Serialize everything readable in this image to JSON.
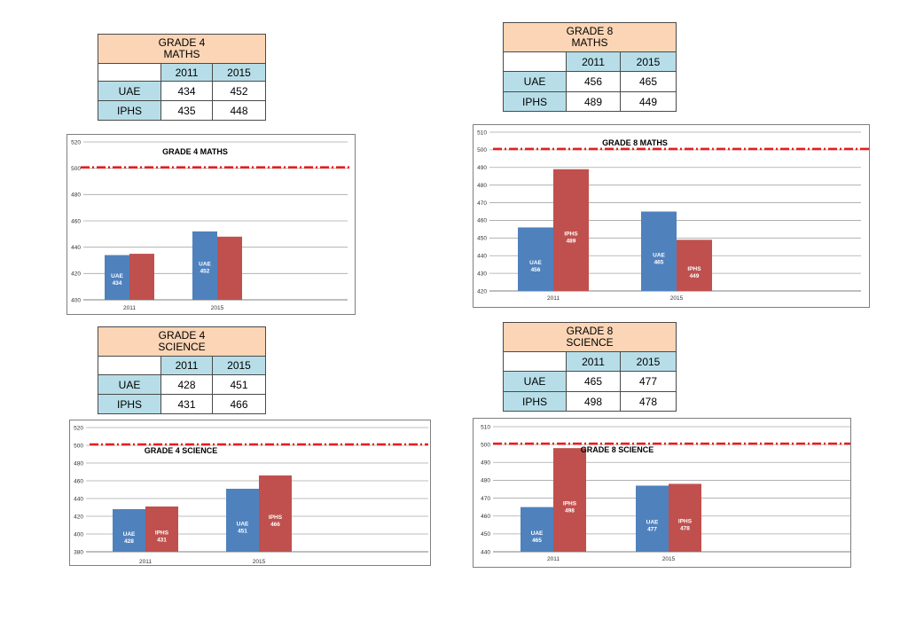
{
  "colors": {
    "uae": "#4f81bd",
    "iphs": "#c0504d",
    "reference": "#e41e1e",
    "gridline": "#a6a6a6"
  },
  "tables": [
    {
      "title_line1": "GRADE 4",
      "title_line2": "MATHS",
      "years": [
        "2011",
        "2015"
      ],
      "rows": [
        {
          "label": "UAE",
          "values": [
            "434",
            "452"
          ]
        },
        {
          "label": "IPHS",
          "values": [
            "435",
            "448"
          ]
        }
      ]
    },
    {
      "title_line1": "GRADE 8",
      "title_line2": "MATHS",
      "years": [
        "2011",
        "2015"
      ],
      "rows": [
        {
          "label": "UAE",
          "values": [
            "456",
            "465"
          ]
        },
        {
          "label": "IPHS",
          "values": [
            "489",
            "449"
          ]
        }
      ]
    },
    {
      "title_line1": "GRADE 4",
      "title_line2": "SCIENCE",
      "years": [
        "2011",
        "2015"
      ],
      "rows": [
        {
          "label": "UAE",
          "values": [
            "428",
            "451"
          ]
        },
        {
          "label": "IPHS",
          "values": [
            "431",
            "466"
          ]
        }
      ]
    },
    {
      "title_line1": "GRADE 8",
      "title_line2": "SCIENCE",
      "years": [
        "2011",
        "2015"
      ],
      "rows": [
        {
          "label": "UAE",
          "values": [
            "465",
            "477"
          ]
        },
        {
          "label": "IPHS",
          "values": [
            "498",
            "478"
          ]
        }
      ]
    }
  ],
  "chart_data": [
    {
      "type": "bar",
      "title": "GRADE 4 MATHS",
      "categories": [
        "2011",
        "2015"
      ],
      "series": [
        {
          "name": "UAE",
          "values": [
            434,
            452
          ]
        },
        {
          "name": "IPHS",
          "values": [
            435,
            448
          ]
        }
      ],
      "ylim": [
        400,
        520
      ],
      "yticks": [
        400,
        420,
        440,
        460,
        480,
        500,
        520
      ],
      "reference_line": 500,
      "bar_label_series": [
        "UAE"
      ],
      "grid": true
    },
    {
      "type": "bar",
      "title": "GRADE 8 MATHS",
      "categories": [
        "2011",
        "2015"
      ],
      "series": [
        {
          "name": "UAE",
          "values": [
            456,
            465
          ]
        },
        {
          "name": "IPHS",
          "values": [
            489,
            449
          ]
        }
      ],
      "ylim": [
        420,
        510
      ],
      "yticks": [
        420,
        430,
        440,
        450,
        460,
        470,
        480,
        490,
        500,
        510
      ],
      "reference_line": 500,
      "bar_label_series": [
        "UAE",
        "IPHS"
      ],
      "grid": true
    },
    {
      "type": "bar",
      "title": "GRADE 4 SCIENCE",
      "categories": [
        "2011",
        "2015"
      ],
      "series": [
        {
          "name": "UAE",
          "values": [
            428,
            451
          ]
        },
        {
          "name": "IPHS",
          "values": [
            431,
            466
          ]
        }
      ],
      "ylim": [
        380,
        520
      ],
      "yticks": [
        380,
        400,
        420,
        440,
        460,
        480,
        500,
        520
      ],
      "reference_line": 500,
      "bar_label_series": [
        "UAE",
        "IPHS"
      ],
      "grid": true
    },
    {
      "type": "bar",
      "title": "GRADE 8 SCIENCE",
      "categories": [
        "2011",
        "2015"
      ],
      "series": [
        {
          "name": "UAE",
          "values": [
            465,
            477
          ]
        },
        {
          "name": "IPHS",
          "values": [
            498,
            478
          ]
        }
      ],
      "ylim": [
        440,
        510
      ],
      "yticks": [
        440,
        450,
        460,
        470,
        480,
        490,
        500,
        510
      ],
      "reference_line": 500,
      "bar_label_series": [
        "UAE",
        "IPHS"
      ],
      "grid": true
    }
  ]
}
